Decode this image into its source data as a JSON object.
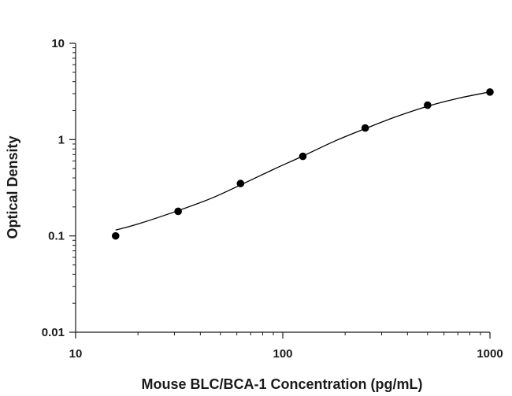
{
  "chart_data": {
    "type": "scatter",
    "title": "",
    "xlabel": "Mouse BLC/BCA-1 Concentration (pg/mL)",
    "ylabel": "Optical Density",
    "x_scale": "log",
    "y_scale": "log",
    "xlim": [
      10,
      1000
    ],
    "ylim": [
      0.01,
      10
    ],
    "x_ticks": [
      "10",
      "100",
      "1000"
    ],
    "y_ticks": [
      "10",
      "1",
      "0.1",
      "0.01"
    ],
    "grid": false,
    "legend": "none",
    "series": [
      {
        "x": [
          15.6,
          31.25,
          62.5,
          125,
          250,
          500,
          1000
        ],
        "y": [
          0.1,
          0.18,
          0.35,
          0.67,
          1.32,
          2.28,
          3.12
        ]
      }
    ],
    "fit_curve": {
      "x": [
        15.6,
        20,
        31.25,
        45,
        62.5,
        90,
        125,
        180,
        250,
        350,
        500,
        700,
        1000
      ],
      "y": [
        0.115,
        0.133,
        0.183,
        0.245,
        0.338,
        0.49,
        0.675,
        0.975,
        1.3,
        1.72,
        2.22,
        2.68,
        3.13
      ]
    },
    "colors": {
      "marker": "#000000",
      "curve": "#000000",
      "axis": "#1a1a1a"
    }
  }
}
